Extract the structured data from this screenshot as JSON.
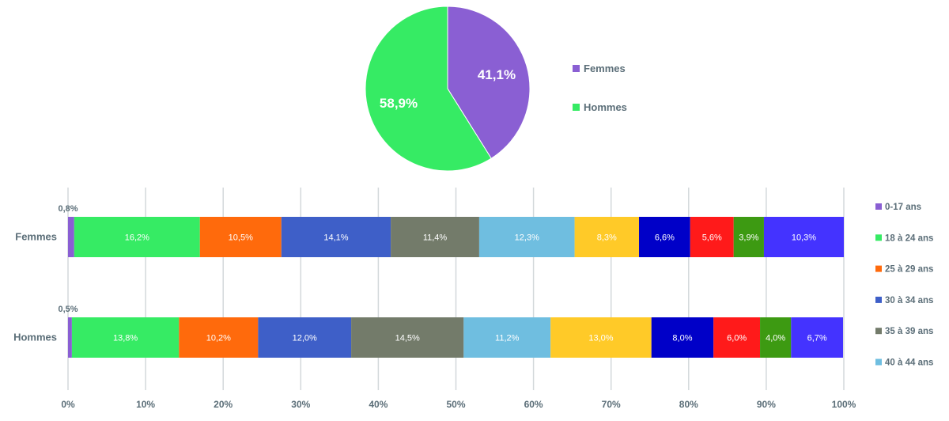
{
  "chart_data": [
    {
      "type": "pie",
      "title": "",
      "slices": [
        {
          "name": "Femmes",
          "value": 41.1,
          "label": "41,1%",
          "color": "#8A5FD3"
        },
        {
          "name": "Hommes",
          "value": 58.9,
          "label": "58,9%",
          "color": "#36EB64"
        }
      ],
      "legend_position": "right"
    },
    {
      "type": "bar",
      "orientation": "horizontal",
      "stacked": true,
      "normalized": true,
      "title": "",
      "categories": [
        "Femmes",
        "Hommes"
      ],
      "xlim": [
        0,
        100
      ],
      "x_ticks": [
        "0%",
        "10%",
        "20%",
        "30%",
        "40%",
        "50%",
        "60%",
        "70%",
        "80%",
        "90%",
        "100%"
      ],
      "grid": "vertical",
      "legend_position": "right",
      "segment_colors": [
        "#8A5FD3",
        "#36EB64",
        "#FF6A0C",
        "#3E5FC8",
        "#737B6A",
        "#6FBEE0",
        "#FFCA28",
        "#0000C8",
        "#FF1A1A",
        "#3D9A12",
        "#4433FF"
      ],
      "legend": [
        {
          "name": "0-17 ans",
          "color": "#8A5FD3"
        },
        {
          "name": "18 à 24 ans",
          "color": "#36EB64"
        },
        {
          "name": "25 à 29 ans",
          "color": "#FF6A0C"
        },
        {
          "name": "30 à 34 ans",
          "color": "#3E5FC8"
        },
        {
          "name": "35 à 39 ans",
          "color": "#737B6A"
        },
        {
          "name": "40 à 44 ans",
          "color": "#6FBEE0"
        }
      ],
      "rows": [
        {
          "name": "Femmes",
          "values": [
            0.8,
            16.2,
            10.5,
            14.1,
            11.4,
            12.3,
            8.3,
            6.6,
            5.6,
            3.9,
            10.3
          ],
          "labels": [
            "0,8%",
            "16,2%",
            "10,5%",
            "14,1%",
            "11,4%",
            "12,3%",
            "8,3%",
            "6,6%",
            "5,6%",
            "3,9%",
            "10,3%"
          ]
        },
        {
          "name": "Hommes",
          "values": [
            0.5,
            13.8,
            10.2,
            12.0,
            14.5,
            11.2,
            13.0,
            8.0,
            6.0,
            4.0,
            6.7
          ],
          "labels": [
            "0,5%",
            "13,8%",
            "10,2%",
            "12,0%",
            "14,5%",
            "11,2%",
            "13,0%",
            "8,0%",
            "6,0%",
            "4,0%",
            "6,7%"
          ]
        }
      ]
    }
  ]
}
